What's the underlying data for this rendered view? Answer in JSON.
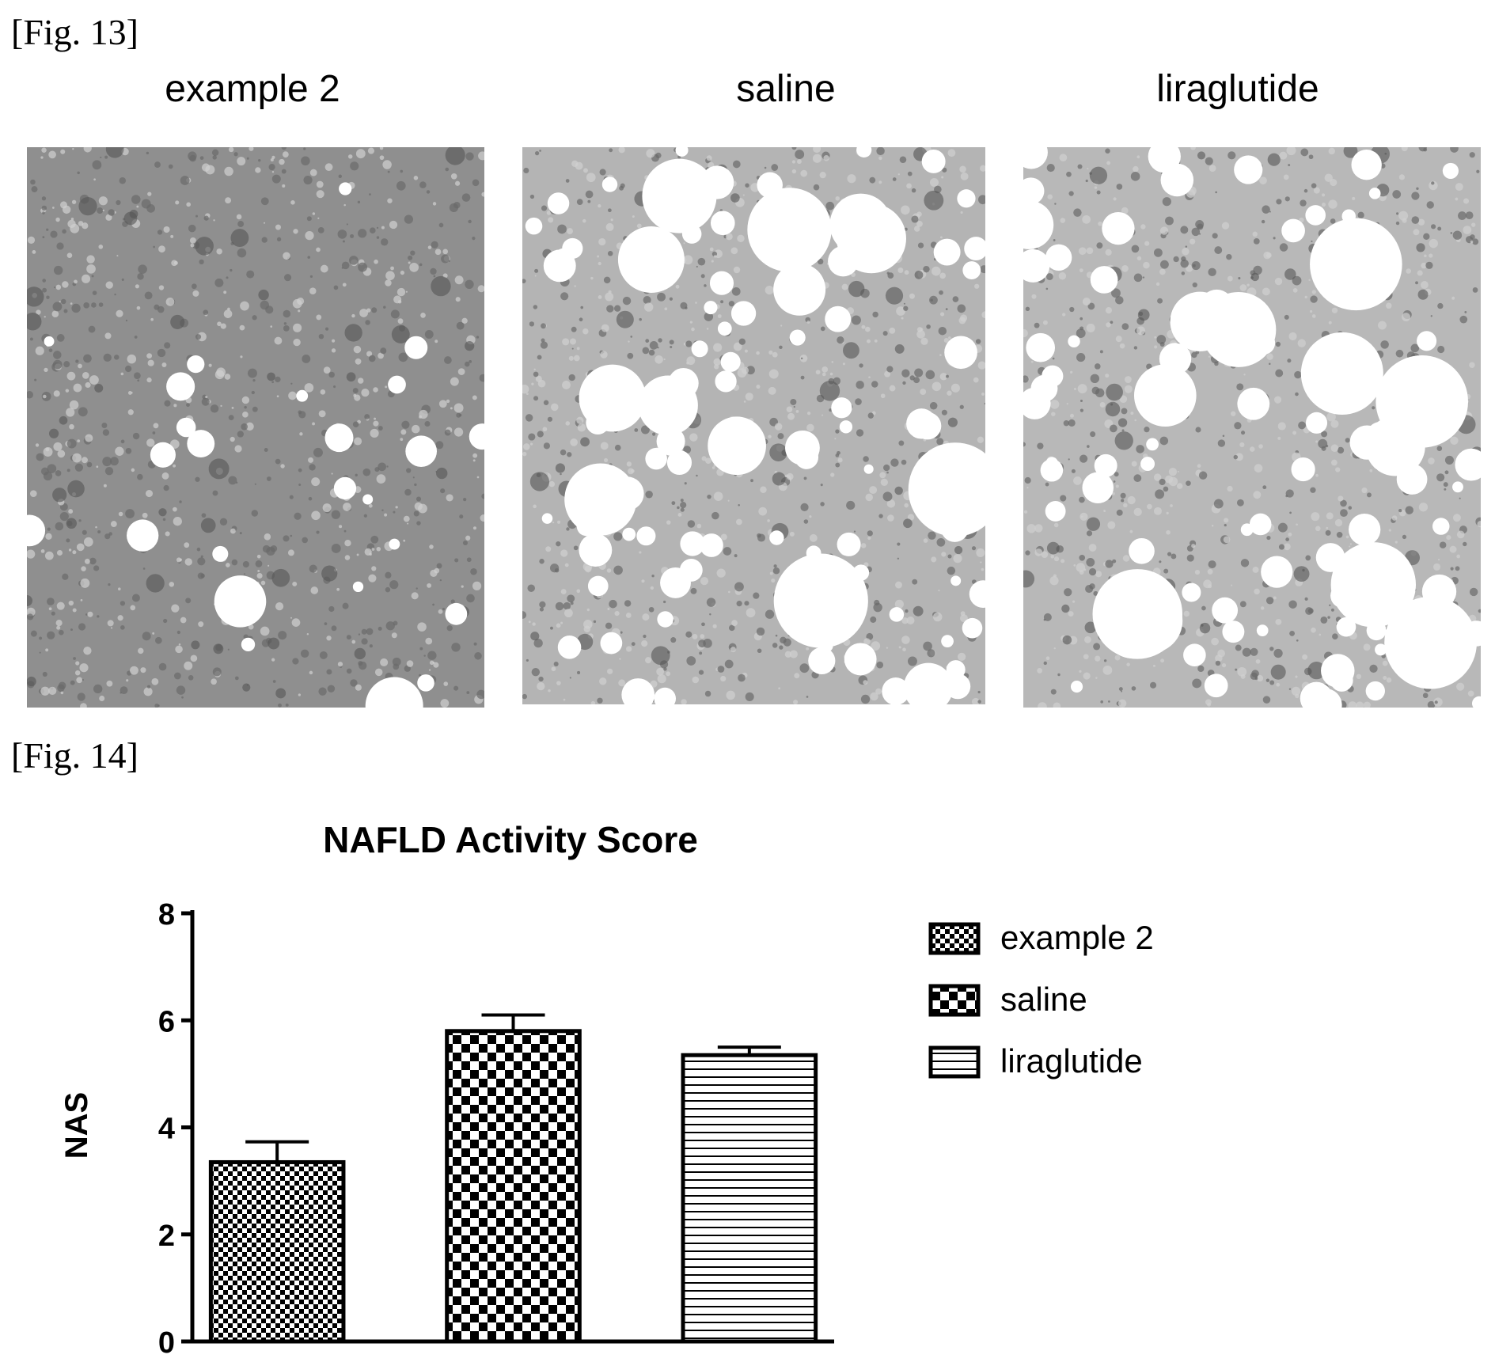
{
  "figures": {
    "fig13": {
      "label": "[Fig. 13]",
      "panels": [
        {
          "title": "example 2",
          "tone": "#8f8f8f",
          "droplets": "few"
        },
        {
          "title": "saline",
          "tone": "#b4b4b4",
          "droplets": "many"
        },
        {
          "title": "liraglutide",
          "tone": "#b8b8b8",
          "droplets": "many"
        }
      ]
    },
    "fig14": {
      "label": "[Fig. 14]"
    }
  },
  "chart_data": {
    "type": "bar",
    "title": "NAFLD Activity Score",
    "xlabel": "",
    "ylabel": "NAS",
    "ylim": [
      0,
      8
    ],
    "yticks": [
      "0",
      "2",
      "4",
      "6",
      "8"
    ],
    "categories": [
      "example 2",
      "saline",
      "liraglutide"
    ],
    "values": [
      3.35,
      5.8,
      5.35
    ],
    "errors": [
      0.38,
      0.3,
      0.15
    ],
    "patterns": [
      "fine-checker",
      "coarse-checker",
      "horizontal-lines"
    ],
    "legend": {
      "position": "right",
      "entries": [
        "example 2",
        "saline",
        "liraglutide"
      ]
    },
    "grid": false
  }
}
